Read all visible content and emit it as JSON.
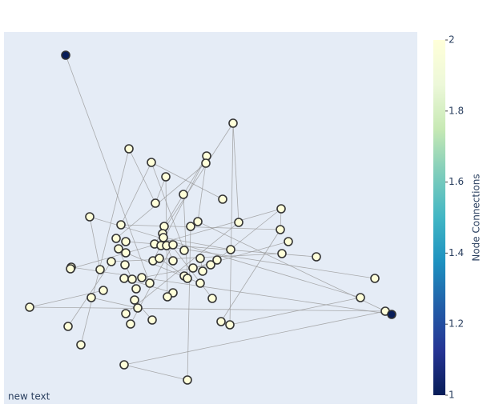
{
  "chart_data": {
    "type": "network",
    "annotation": "new text",
    "colorbar_title": "Node Connections",
    "clim": [
      1,
      2
    ],
    "cticks": [
      1,
      1.2,
      1.4,
      1.6,
      1.8,
      2
    ],
    "colorscale": [
      "#081d58",
      "#253494",
      "#225ea8",
      "#1d91c0",
      "#41b6c4",
      "#7fcdbb",
      "#c7e9b4",
      "#edf8d9",
      "#ffffd9"
    ],
    "xlim": [
      0,
      516
    ],
    "ylim": [
      0,
      465
    ],
    "x": [
      77,
      286,
      156,
      184,
      253,
      252,
      202,
      224,
      273,
      189,
      107,
      346,
      146,
      242,
      233,
      293,
      200,
      345,
      198,
      199,
      140,
      152,
      355,
      188,
      196,
      203,
      211,
      143,
      152,
      225,
      283,
      347,
      390,
      134,
      186,
      194,
      211,
      245,
      266,
      258,
      84,
      83,
      120,
      151,
      236,
      248,
      225,
      229,
      150,
      160,
      172,
      182,
      245,
      165,
      124,
      463,
      211,
      204,
      109,
      163,
      260,
      445,
      32,
      167,
      152,
      476,
      484,
      158,
      185,
      271,
      282,
      80,
      96,
      150,
      229
    ],
    "y": [
      436,
      351,
      319,
      302,
      310,
      301,
      284,
      262,
      256,
      251,
      234,
      244,
      224,
      228,
      222,
      227,
      222,
      218,
      213,
      208,
      207,
      203,
      203,
      200,
      198,
      198,
      199,
      194,
      189,
      192,
      193,
      188,
      184,
      178,
      179,
      182,
      179,
      182,
      180,
      174,
      171,
      169,
      168,
      174,
      170,
      166,
      160,
      157,
      157,
      156,
      158,
      151,
      151,
      144,
      142,
      157,
      139,
      134,
      133,
      130,
      132,
      133,
      121,
      120,
      113,
      116,
      112,
      100,
      105,
      103,
      99,
      97,
      74,
      49,
      30
    ],
    "values": [
      1,
      2,
      2,
      2,
      2,
      2,
      2,
      2,
      2,
      2,
      2,
      2,
      2,
      2,
      2,
      2,
      2,
      2,
      2,
      2,
      2,
      2,
      2,
      2,
      2,
      2,
      2,
      2,
      2,
      2,
      2,
      2,
      2,
      2,
      2,
      2,
      2,
      2,
      2,
      2,
      2,
      2,
      2,
      2,
      2,
      2,
      2,
      2,
      2,
      2,
      2,
      2,
      2,
      2,
      2,
      2,
      2,
      2,
      2,
      2,
      2,
      2,
      2,
      2,
      2,
      2,
      1,
      2,
      2,
      2,
      2,
      2,
      2,
      2,
      2
    ],
    "edges": [
      [
        0,
        51
      ],
      [
        1,
        15
      ],
      [
        1,
        70
      ],
      [
        1,
        23
      ],
      [
        2,
        9
      ],
      [
        2,
        72
      ],
      [
        3,
        12
      ],
      [
        3,
        29
      ],
      [
        4,
        34
      ],
      [
        4,
        16
      ],
      [
        5,
        20
      ],
      [
        5,
        13
      ],
      [
        6,
        57
      ],
      [
        7,
        47
      ],
      [
        8,
        3
      ],
      [
        10,
        42
      ],
      [
        10,
        61
      ],
      [
        11,
        38
      ],
      [
        11,
        41
      ],
      [
        12,
        17
      ],
      [
        13,
        65
      ],
      [
        14,
        74
      ],
      [
        15,
        64
      ],
      [
        17,
        69
      ],
      [
        18,
        60
      ],
      [
        19,
        30
      ],
      [
        21,
        32
      ],
      [
        22,
        44
      ],
      [
        24,
        55
      ],
      [
        25,
        36
      ],
      [
        26,
        67
      ],
      [
        27,
        53
      ],
      [
        28,
        52
      ],
      [
        31,
        33
      ],
      [
        33,
        71
      ],
      [
        35,
        46
      ],
      [
        37,
        45
      ],
      [
        39,
        50
      ],
      [
        40,
        66
      ],
      [
        43,
        49
      ],
      [
        48,
        56
      ],
      [
        54,
        62
      ],
      [
        58,
        63
      ],
      [
        59,
        68
      ],
      [
        61,
        70
      ],
      [
        65,
        73
      ],
      [
        73,
        74
      ],
      [
        62,
        65
      ],
      [
        6,
        9
      ],
      [
        11,
        17
      ]
    ]
  }
}
